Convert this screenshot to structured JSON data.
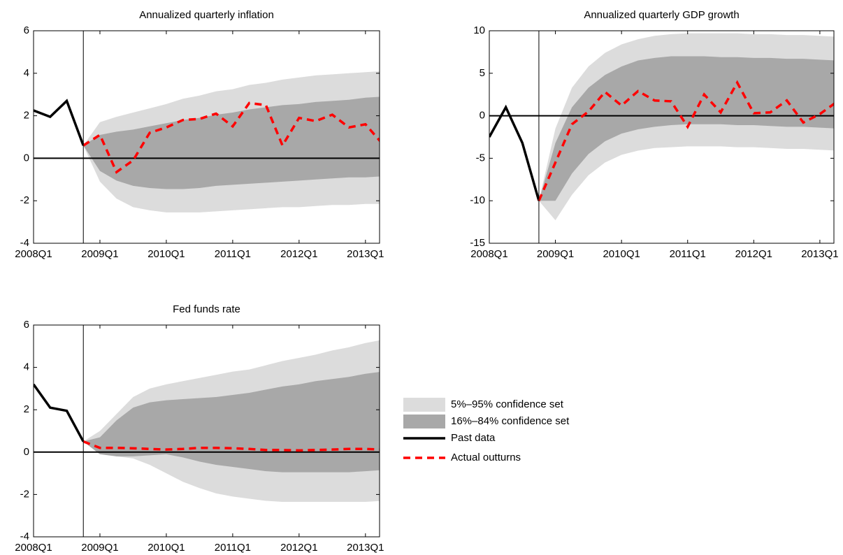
{
  "chart_data": [
    {
      "type": "fan",
      "title": "Annualized quarterly inflation",
      "categories": [
        "2008Q1",
        null,
        null,
        null,
        "2009Q1",
        null,
        null,
        null,
        "2010Q1",
        null,
        null,
        null,
        "2011Q1",
        null,
        null,
        null,
        "2012Q1",
        null,
        null,
        null,
        "2013Q1",
        null
      ],
      "ylim": [
        -4,
        6
      ],
      "yticks": [
        -4,
        -2,
        0,
        2,
        4,
        6
      ],
      "reference_line": 0,
      "series": [
        {
          "name": "5%–95% confidence set",
          "color": "#dcdcdc",
          "upper": [
            null,
            null,
            null,
            0.6,
            1.7,
            1.95,
            2.15,
            2.35,
            2.55,
            2.8,
            2.95,
            3.15,
            3.25,
            3.45,
            3.55,
            3.7,
            3.8,
            3.9,
            3.95,
            4.0,
            4.05,
            4.1
          ],
          "lower": [
            null,
            null,
            null,
            0.6,
            -1.1,
            -1.9,
            -2.3,
            -2.45,
            -2.55,
            -2.55,
            -2.55,
            -2.5,
            -2.45,
            -2.4,
            -2.35,
            -2.3,
            -2.3,
            -2.25,
            -2.2,
            -2.2,
            -2.15,
            -2.15
          ]
        },
        {
          "name": "16%–84% confidence set",
          "color": "#a8a8a8",
          "upper": [
            null,
            null,
            null,
            0.6,
            1.1,
            1.25,
            1.35,
            1.5,
            1.65,
            1.8,
            1.9,
            2.05,
            2.15,
            2.3,
            2.4,
            2.5,
            2.55,
            2.65,
            2.7,
            2.75,
            2.85,
            2.9
          ],
          "lower": [
            null,
            null,
            null,
            0.6,
            -0.6,
            -1.05,
            -1.3,
            -1.4,
            -1.45,
            -1.45,
            -1.4,
            -1.3,
            -1.25,
            -1.2,
            -1.15,
            -1.1,
            -1.05,
            -1.0,
            -0.95,
            -0.9,
            -0.9,
            -0.85
          ]
        },
        {
          "name": "Past data",
          "color": "#000000",
          "dashed": false,
          "values": [
            2.25,
            1.95,
            2.7,
            0.6,
            null,
            null,
            null,
            null,
            null,
            null,
            null,
            null,
            null,
            null,
            null,
            null,
            null,
            null,
            null,
            null,
            null,
            null
          ]
        },
        {
          "name": "Actual outturns",
          "color": "#ff0000",
          "dashed": true,
          "values": [
            null,
            null,
            null,
            0.6,
            1.1,
            -0.65,
            -0.1,
            1.2,
            1.45,
            1.8,
            1.85,
            2.1,
            1.5,
            2.6,
            2.5,
            0.6,
            1.9,
            1.75,
            2.05,
            1.45,
            1.6,
            0.7
          ]
        }
      ]
    },
    {
      "type": "fan",
      "title": "Annualized quarterly GDP growth",
      "categories": [
        "2008Q1",
        null,
        null,
        null,
        "2009Q1",
        null,
        null,
        null,
        "2010Q1",
        null,
        null,
        null,
        "2011Q1",
        null,
        null,
        null,
        "2012Q1",
        null,
        null,
        null,
        "2013Q1",
        null
      ],
      "ylim": [
        -15,
        10
      ],
      "yticks": [
        -15,
        -10,
        -5,
        0,
        5,
        10
      ],
      "reference_line": 0,
      "series": [
        {
          "name": "5%–95% confidence set",
          "color": "#dcdcdc",
          "upper": [
            null,
            null,
            null,
            -10,
            -1.5,
            3.3,
            5.8,
            7.4,
            8.4,
            9.0,
            9.4,
            9.6,
            9.7,
            9.7,
            9.7,
            9.7,
            9.6,
            9.6,
            9.5,
            9.5,
            9.4,
            9.3
          ],
          "lower": [
            null,
            null,
            null,
            -10,
            -12.3,
            -9.3,
            -7.0,
            -5.5,
            -4.6,
            -4.1,
            -3.8,
            -3.7,
            -3.6,
            -3.6,
            -3.6,
            -3.7,
            -3.7,
            -3.8,
            -3.9,
            -3.9,
            -4.0,
            -4.1
          ]
        },
        {
          "name": "16%–84% confidence set",
          "color": "#a8a8a8",
          "upper": [
            null,
            null,
            null,
            -10,
            -3.2,
            1.0,
            3.3,
            4.8,
            5.8,
            6.5,
            6.8,
            7.0,
            7.0,
            7.0,
            6.9,
            6.9,
            6.8,
            6.8,
            6.7,
            6.7,
            6.6,
            6.5
          ],
          "lower": [
            null,
            null,
            null,
            -10,
            -10,
            -6.8,
            -4.5,
            -3.0,
            -2.1,
            -1.6,
            -1.3,
            -1.1,
            -1.0,
            -1.0,
            -1.0,
            -1.1,
            -1.1,
            -1.2,
            -1.3,
            -1.3,
            -1.4,
            -1.5
          ]
        },
        {
          "name": "Past data",
          "color": "#000000",
          "dashed": false,
          "values": [
            -2.5,
            1.0,
            -3.2,
            -10,
            null,
            null,
            null,
            null,
            null,
            null,
            null,
            null,
            null,
            null,
            null,
            null,
            null,
            null,
            null,
            null,
            null,
            null
          ]
        },
        {
          "name": "Actual outturns",
          "color": "#ff0000",
          "dashed": true,
          "values": [
            null,
            null,
            null,
            -10,
            -5.5,
            -1.0,
            0.5,
            2.8,
            1.2,
            2.9,
            1.8,
            1.7,
            -1.3,
            2.5,
            0.4,
            3.9,
            0.3,
            0.4,
            1.8,
            -0.8,
            0.2,
            1.6
          ]
        }
      ]
    },
    {
      "type": "fan",
      "title": "Fed funds rate",
      "categories": [
        "2008Q1",
        null,
        null,
        null,
        "2009Q1",
        null,
        null,
        null,
        "2010Q1",
        null,
        null,
        null,
        "2011Q1",
        null,
        null,
        null,
        "2012Q1",
        null,
        null,
        null,
        "2013Q1",
        null
      ],
      "ylim": [
        -4,
        6
      ],
      "yticks": [
        -4,
        -2,
        0,
        2,
        4,
        6
      ],
      "reference_line": 0,
      "series": [
        {
          "name": "5%–95% confidence set",
          "color": "#dcdcdc",
          "upper": [
            null,
            null,
            null,
            0.5,
            1.0,
            1.8,
            2.6,
            3.0,
            3.2,
            3.35,
            3.5,
            3.65,
            3.8,
            3.9,
            4.1,
            4.3,
            4.45,
            4.6,
            4.8,
            4.95,
            5.15,
            5.3
          ],
          "lower": [
            null,
            null,
            null,
            0.5,
            0.0,
            -0.2,
            -0.3,
            -0.6,
            -1.0,
            -1.4,
            -1.7,
            -1.95,
            -2.1,
            -2.2,
            -2.3,
            -2.35,
            -2.35,
            -2.35,
            -2.35,
            -2.35,
            -2.35,
            -2.3
          ]
        },
        {
          "name": "16%–84% confidence set",
          "color": "#a8a8a8",
          "upper": [
            null,
            null,
            null,
            0.5,
            0.7,
            1.5,
            2.1,
            2.35,
            2.45,
            2.5,
            2.55,
            2.6,
            2.7,
            2.8,
            2.95,
            3.1,
            3.2,
            3.35,
            3.45,
            3.55,
            3.7,
            3.8
          ],
          "lower": [
            null,
            null,
            null,
            0.5,
            -0.1,
            -0.2,
            -0.2,
            -0.15,
            -0.1,
            -0.25,
            -0.45,
            -0.6,
            -0.7,
            -0.8,
            -0.9,
            -0.95,
            -0.95,
            -0.95,
            -0.95,
            -0.95,
            -0.9,
            -0.85
          ]
        },
        {
          "name": "Past data",
          "color": "#000000",
          "dashed": false,
          "values": [
            3.2,
            2.1,
            1.95,
            0.5,
            null,
            null,
            null,
            null,
            null,
            null,
            null,
            null,
            null,
            null,
            null,
            null,
            null,
            null,
            null,
            null,
            null,
            null
          ]
        },
        {
          "name": "Actual outturns",
          "color": "#ff0000",
          "dashed": true,
          "values": [
            null,
            null,
            null,
            0.5,
            0.2,
            0.2,
            0.18,
            0.15,
            0.12,
            0.15,
            0.2,
            0.2,
            0.18,
            0.15,
            0.1,
            0.1,
            0.08,
            0.1,
            0.12,
            0.15,
            0.15,
            0.12
          ]
        }
      ]
    }
  ]
}
